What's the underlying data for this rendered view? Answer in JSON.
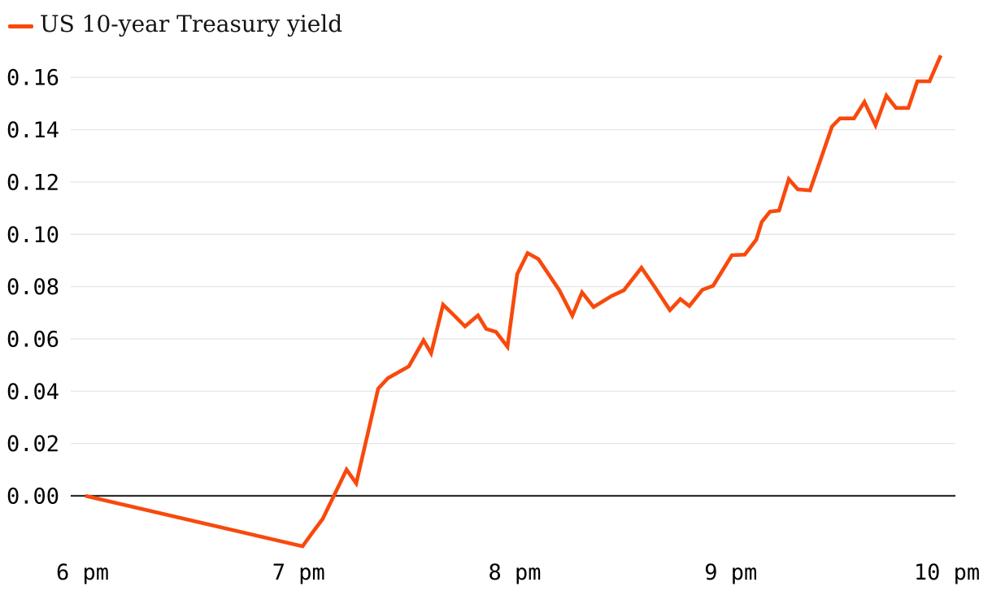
{
  "legend": {
    "label": "US 10-year Treasury yield",
    "swatch_color": "#f8490d"
  },
  "chart_data": {
    "type": "line",
    "title": "US 10-year Treasury yield",
    "x_unit": "minutes after 6 pm",
    "y_unit": "yield change (percentage points)",
    "grid": "horizontal gridlines only",
    "legend_position": "top-left",
    "zero_line": true,
    "xlim_minutes": [
      -3.3,
      242.4
    ],
    "ylim": [
      -0.026,
      0.175
    ],
    "x_ticks": [
      {
        "t": 0,
        "label": "6 pm"
      },
      {
        "t": 60,
        "label": "7 pm"
      },
      {
        "t": 120,
        "label": "8 pm"
      },
      {
        "t": 180,
        "label": "9 pm"
      },
      {
        "t": 240,
        "label": "10 pm"
      }
    ],
    "y_ticks": [
      {
        "v": 0.0,
        "label": "0.00"
      },
      {
        "v": 0.02,
        "label": "0.02"
      },
      {
        "v": 0.04,
        "label": "0.04"
      },
      {
        "v": 0.06,
        "label": "0.06"
      },
      {
        "v": 0.08,
        "label": "0.08"
      },
      {
        "v": 0.1,
        "label": "0.10"
      },
      {
        "v": 0.12,
        "label": "0.12"
      },
      {
        "v": 0.14,
        "label": "0.14"
      },
      {
        "v": 0.16,
        "label": "0.16"
      }
    ],
    "series": [
      {
        "name": "US 10-year Treasury yield",
        "color": "#f8490d",
        "points": [
          [
            0.8,
            0.0
          ],
          [
            61.1,
            -0.0193
          ],
          [
            63.6,
            -0.0145
          ],
          [
            66.7,
            -0.0088
          ],
          [
            73.3,
            0.01
          ],
          [
            76.0,
            0.0048
          ],
          [
            82.1,
            0.041
          ],
          [
            84.8,
            0.045
          ],
          [
            90.6,
            0.0495
          ],
          [
            94.7,
            0.0595
          ],
          [
            96.8,
            0.0545
          ],
          [
            100.1,
            0.0731
          ],
          [
            102.8,
            0.0695
          ],
          [
            106.2,
            0.0648
          ],
          [
            109.8,
            0.069
          ],
          [
            112.1,
            0.0638
          ],
          [
            114.8,
            0.0627
          ],
          [
            118.0,
            0.057
          ],
          [
            120.7,
            0.0848
          ],
          [
            123.6,
            0.0928
          ],
          [
            126.6,
            0.0905
          ],
          [
            132.4,
            0.0786
          ],
          [
            136.0,
            0.0689
          ],
          [
            138.7,
            0.0778
          ],
          [
            141.9,
            0.0722
          ],
          [
            146.9,
            0.0764
          ],
          [
            150.3,
            0.0786
          ],
          [
            155.2,
            0.0872
          ],
          [
            158.8,
            0.08
          ],
          [
            163.1,
            0.071
          ],
          [
            166.0,
            0.0752
          ],
          [
            168.5,
            0.0726
          ],
          [
            172.1,
            0.0788
          ],
          [
            175.1,
            0.0803
          ],
          [
            180.3,
            0.092
          ],
          [
            183.9,
            0.0922
          ],
          [
            187.1,
            0.098
          ],
          [
            188.6,
            0.1047
          ],
          [
            190.9,
            0.1087
          ],
          [
            193.4,
            0.1091
          ],
          [
            196.1,
            0.1211
          ],
          [
            198.6,
            0.1172
          ],
          [
            202.0,
            0.1168
          ],
          [
            208.1,
            0.1412
          ],
          [
            210.3,
            0.1443
          ],
          [
            214.2,
            0.1443
          ],
          [
            217.1,
            0.1506
          ],
          [
            220.2,
            0.1417
          ],
          [
            223.2,
            0.153
          ],
          [
            225.9,
            0.1483
          ],
          [
            229.3,
            0.1483
          ],
          [
            231.8,
            0.1585
          ],
          [
            235.2,
            0.1585
          ],
          [
            238.3,
            0.1684
          ]
        ]
      }
    ],
    "colors": {
      "line": "#f8490d",
      "gridline": "#e7e7e7",
      "zero_line": "#2e2e2e",
      "tick_text": "#000000"
    }
  }
}
